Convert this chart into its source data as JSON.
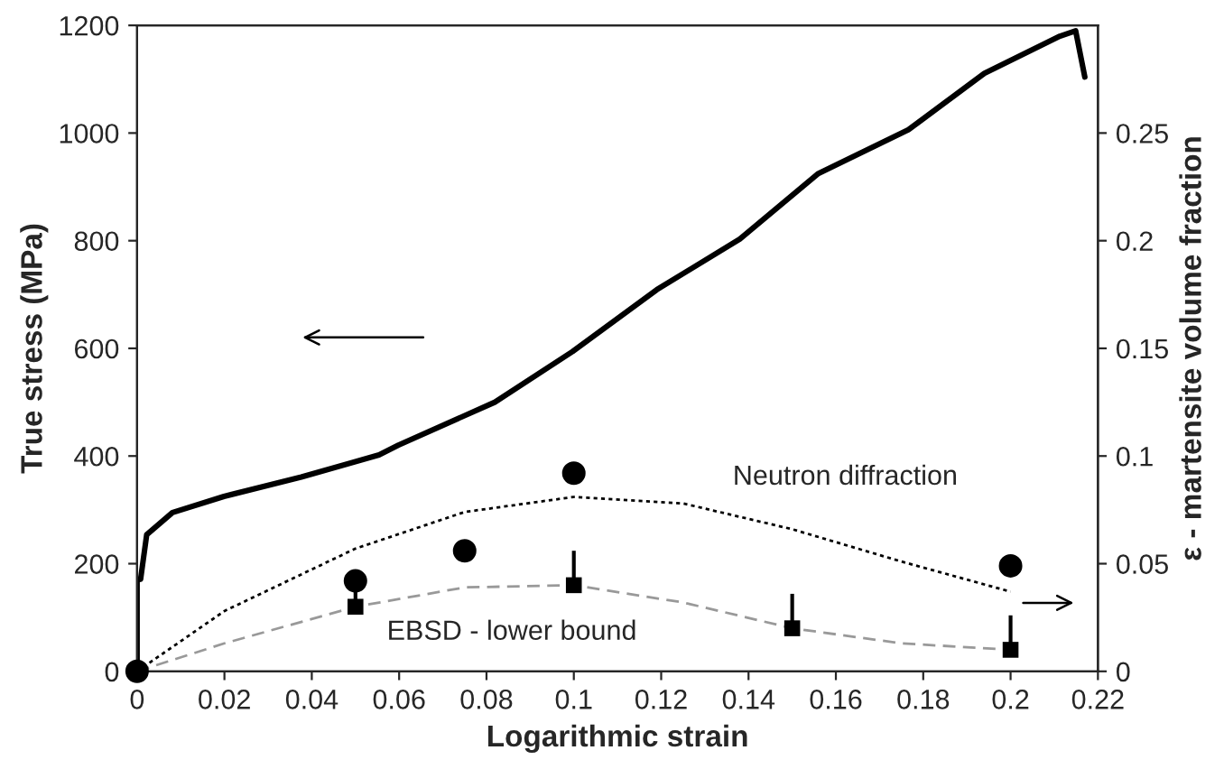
{
  "chart_data": {
    "type": "line",
    "xlabel": "Logarithmic strain",
    "ylabel": "True stress (MPa)",
    "y2label": "ε - martensite volume fraction",
    "xlim": [
      0,
      0.22
    ],
    "xticks": [
      0,
      0.02,
      0.04,
      0.06,
      0.08,
      0.1,
      0.12,
      0.14,
      0.16,
      0.18,
      0.2,
      0.22
    ],
    "ylim": [
      0,
      1200
    ],
    "yticks": [
      0,
      200,
      400,
      600,
      800,
      1000,
      1200
    ],
    "y2lim": [
      0,
      0.3
    ],
    "y2ticks": [
      0,
      0.05,
      0.1,
      0.15,
      0.2,
      0.25
    ],
    "grid": false,
    "legend": false,
    "annotations": [
      "Neutron diffraction",
      "EBSD - lower bound"
    ],
    "series": [
      {
        "axis": "y",
        "color": "#000000",
        "line_style": "solid",
        "marker": "none",
        "x": [
          0,
          0,
          0.0008,
          0.0022,
          0.0081,
          0.0199,
          0.0376,
          0.0554,
          0.0598,
          0.0819,
          0.0997,
          0.119,
          0.138,
          0.156,
          0.1766,
          0.194,
          0.2113,
          0.2149,
          0.217
        ],
        "values": [
          0,
          170,
          171,
          254,
          295,
          325,
          361,
          402,
          420,
          500,
          594,
          709,
          803,
          925,
          1006,
          1111,
          1180,
          1190,
          1104
        ]
      },
      {
        "axis": "y2",
        "color": "#000000",
        "line_style": "dotted",
        "marker": "none",
        "x": [
          0,
          0.02,
          0.05,
          0.075,
          0.1,
          0.125,
          0.15,
          0.175,
          0.2
        ],
        "values": [
          0,
          0.028,
          0.057,
          0.074,
          0.081,
          0.078,
          0.066,
          0.051,
          0.037
        ]
      },
      {
        "axis": "y2",
        "color": "#999999",
        "line_style": "dashed",
        "marker": "none",
        "x": [
          0,
          0.02,
          0.05,
          0.075,
          0.1,
          0.125,
          0.15,
          0.175,
          0.2
        ],
        "values": [
          0,
          0.013,
          0.03,
          0.039,
          0.04,
          0.032,
          0.02,
          0.013,
          0.01
        ]
      },
      {
        "type": "scatter",
        "axis": "y2",
        "color": "#000000",
        "marker": "circle",
        "x": [
          0,
          0.05,
          0.075,
          0.1,
          0.2
        ],
        "values": [
          0,
          0.042,
          0.056,
          0.092,
          0.049
        ]
      },
      {
        "type": "scatter",
        "axis": "y2",
        "color": "#000000",
        "marker": "square",
        "x": [
          0.05,
          0.1,
          0.15,
          0.2
        ],
        "values": [
          0.03,
          0.04,
          0.02,
          0.01
        ],
        "errors": [
          [
            0.03,
            0.04
          ],
          [
            0.04,
            0.056
          ],
          [
            0.02,
            0.036
          ],
          [
            0.01,
            0.026
          ]
        ]
      }
    ]
  }
}
